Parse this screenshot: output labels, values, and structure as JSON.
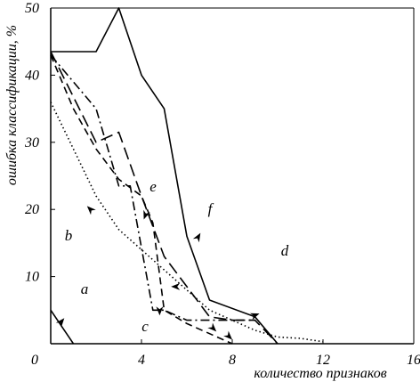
{
  "chart_data": {
    "type": "line",
    "xlabel": "количество признаков",
    "ylabel": "ошибка классификации, %",
    "xlim": [
      0,
      16
    ],
    "ylim": [
      0,
      50
    ],
    "xticks": [
      "0",
      "4",
      "8",
      "12",
      "16"
    ],
    "yticks": [
      "10",
      "20",
      "30",
      "40",
      "50"
    ],
    "series": [
      {
        "style": "solid",
        "x": [
          0,
          2,
          3,
          4,
          5,
          6,
          7,
          9,
          10
        ],
        "y": [
          43.5,
          43.5,
          50,
          40,
          35,
          16,
          6.5,
          4,
          0
        ]
      },
      {
        "style": "dash-long",
        "x": [
          0,
          2,
          3,
          4,
          5,
          6,
          7,
          8,
          9,
          10
        ],
        "y": [
          43.5,
          30,
          31.5,
          22,
          13,
          8.5,
          4,
          3.5,
          3.5,
          0
        ]
      },
      {
        "style": "dash",
        "x": [
          0,
          1,
          2,
          3,
          4,
          4.5,
          5,
          6,
          7,
          8
        ],
        "y": [
          43,
          35,
          29,
          24.5,
          22,
          18,
          5,
          3,
          1.5,
          0
        ]
      },
      {
        "style": "dash-dot",
        "x": [
          0,
          2,
          3,
          3.5,
          4.5,
          4.7,
          5,
          6,
          7,
          8,
          9
        ],
        "y": [
          43,
          35,
          23.5,
          23.5,
          5,
          5,
          5,
          3.5,
          3.5,
          3.5,
          3.5
        ]
      },
      {
        "style": "dotted",
        "x": [
          0,
          1,
          2,
          3,
          4,
          5,
          6,
          7,
          8,
          9,
          10,
          11,
          12
        ],
        "y": [
          36,
          29,
          22,
          17,
          14,
          11,
          8,
          5,
          3.5,
          2,
          1,
          0.8,
          0.3
        ]
      },
      {
        "style": "solid-short",
        "x": [
          0,
          1
        ],
        "y": [
          5,
          0
        ]
      }
    ],
    "region_labels": [
      "a",
      "b",
      "c",
      "d",
      "e",
      "f"
    ],
    "arrows": [
      {
        "x": 0.6,
        "y": 3.8,
        "angle": -50
      },
      {
        "x": 1.6,
        "y": 20.5,
        "angle": -135
      },
      {
        "x": 4.1,
        "y": 18.5,
        "angle": 110
      },
      {
        "x": 4.8,
        "y": 4.2,
        "angle": 90
      },
      {
        "x": 5.3,
        "y": 8.5,
        "angle": 180
      },
      {
        "x": 6.6,
        "y": 16.5,
        "angle": -60
      },
      {
        "x": 7.3,
        "y": 1.8,
        "angle": 45
      },
      {
        "x": 8.0,
        "y": 0.6,
        "angle": 45
      },
      {
        "x": 9.2,
        "y": 4.5,
        "angle": -20
      }
    ]
  }
}
